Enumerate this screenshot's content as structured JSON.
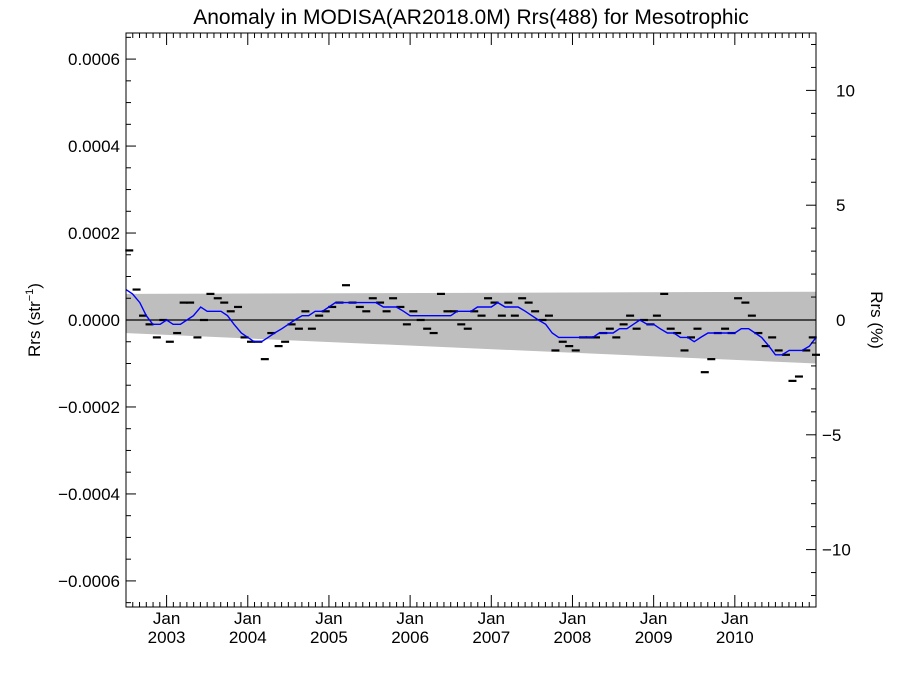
{
  "chart_data": {
    "type": "scatter",
    "title": "Anomaly in MODISA(AR2018.0M) Rrs(488) for Mesotrophic",
    "ylabel_left": "Rrs (str",
    "ylabel_left_sup": "−1",
    "ylabel_left_end": ")",
    "ylabel_right": "Rrs (%)",
    "x_range": [
      2002.5,
      2011.0
    ],
    "ylim_left": [
      -0.00066,
      0.00066
    ],
    "ylim_right": [
      -12.5,
      12.5
    ],
    "left_ticks": [
      {
        "value": 0.0006,
        "label": "0.0006"
      },
      {
        "value": 0.0004,
        "label": "0.0004"
      },
      {
        "value": 0.0002,
        "label": "0.0002"
      },
      {
        "value": 0.0,
        "label": "0.0000"
      },
      {
        "value": -0.0002,
        "label": "−0.0002"
      },
      {
        "value": -0.0004,
        "label": "−0.0004"
      },
      {
        "value": -0.0006,
        "label": "−0.0006"
      }
    ],
    "right_ticks": [
      {
        "value": 10,
        "label": "10"
      },
      {
        "value": 5,
        "label": "5"
      },
      {
        "value": 0,
        "label": "0"
      },
      {
        "value": -5,
        "label": "−5"
      },
      {
        "value": -10,
        "label": "−10"
      }
    ],
    "x_ticks": [
      {
        "value": 2003.0,
        "month": "Jan",
        "year": "2003"
      },
      {
        "value": 2004.0,
        "month": "Jan",
        "year": "2004"
      },
      {
        "value": 2005.0,
        "month": "Jan",
        "year": "2005"
      },
      {
        "value": 2006.0,
        "month": "Jan",
        "year": "2006"
      },
      {
        "value": 2007.0,
        "month": "Jan",
        "year": "2007"
      },
      {
        "value": 2008.0,
        "month": "Jan",
        "year": "2008"
      },
      {
        "value": 2009.0,
        "month": "Jan",
        "year": "2009"
      },
      {
        "value": 2010.0,
        "month": "Jan",
        "year": "2010"
      }
    ],
    "band": {
      "upper": [
        [
          2002.5,
          6e-05
        ],
        [
          2011.0,
          6.5e-05
        ]
      ],
      "lower": [
        [
          2002.5,
          -3e-05
        ],
        [
          2011.0,
          -0.0001
        ]
      ]
    },
    "zero_line": 0,
    "points": [
      [
        2002.54,
        0.00016
      ],
      [
        2002.63,
        7e-05
      ],
      [
        2002.71,
        1e-05
      ],
      [
        2002.79,
        -1e-05
      ],
      [
        2002.88,
        -4e-05
      ],
      [
        2002.96,
        0.0
      ],
      [
        2003.04,
        -5e-05
      ],
      [
        2003.13,
        -3e-05
      ],
      [
        2003.21,
        4e-05
      ],
      [
        2003.29,
        4e-05
      ],
      [
        2003.38,
        -4e-05
      ],
      [
        2003.46,
        0.0
      ],
      [
        2003.54,
        6e-05
      ],
      [
        2003.63,
        5e-05
      ],
      [
        2003.71,
        4e-05
      ],
      [
        2003.79,
        2e-05
      ],
      [
        2003.88,
        3e-05
      ],
      [
        2003.96,
        -4e-05
      ],
      [
        2004.04,
        -5e-05
      ],
      [
        2004.13,
        -5e-05
      ],
      [
        2004.21,
        -9e-05
      ],
      [
        2004.29,
        -3e-05
      ],
      [
        2004.38,
        -6e-05
      ],
      [
        2004.46,
        -5e-05
      ],
      [
        2004.54,
        -1e-05
      ],
      [
        2004.63,
        -2e-05
      ],
      [
        2004.71,
        2e-05
      ],
      [
        2004.79,
        -2e-05
      ],
      [
        2004.88,
        1e-05
      ],
      [
        2004.96,
        2e-05
      ],
      [
        2005.04,
        3e-05
      ],
      [
        2005.13,
        4e-05
      ],
      [
        2005.21,
        8e-05
      ],
      [
        2005.29,
        4e-05
      ],
      [
        2005.38,
        3e-05
      ],
      [
        2005.46,
        2e-05
      ],
      [
        2005.54,
        5e-05
      ],
      [
        2005.63,
        4e-05
      ],
      [
        2005.71,
        2e-05
      ],
      [
        2005.79,
        5e-05
      ],
      [
        2005.88,
        3e-05
      ],
      [
        2005.96,
        -1e-05
      ],
      [
        2006.04,
        2e-05
      ],
      [
        2006.13,
        0.0
      ],
      [
        2006.21,
        -2e-05
      ],
      [
        2006.29,
        -3e-05
      ],
      [
        2006.38,
        6e-05
      ],
      [
        2006.46,
        2e-05
      ],
      [
        2006.54,
        2e-05
      ],
      [
        2006.63,
        -1e-05
      ],
      [
        2006.71,
        -2e-05
      ],
      [
        2006.79,
        2e-05
      ],
      [
        2006.88,
        1e-05
      ],
      [
        2006.96,
        5e-05
      ],
      [
        2007.04,
        4e-05
      ],
      [
        2007.13,
        1e-05
      ],
      [
        2007.21,
        4e-05
      ],
      [
        2007.29,
        1e-05
      ],
      [
        2007.38,
        5e-05
      ],
      [
        2007.46,
        4e-05
      ],
      [
        2007.54,
        2e-05
      ],
      [
        2007.63,
        0.0
      ],
      [
        2007.71,
        1e-05
      ],
      [
        2007.79,
        -7e-05
      ],
      [
        2007.88,
        -5e-05
      ],
      [
        2007.96,
        -6e-05
      ],
      [
        2008.04,
        -7e-05
      ],
      [
        2008.13,
        -4e-05
      ],
      [
        2008.21,
        -4e-05
      ],
      [
        2008.29,
        -4e-05
      ],
      [
        2008.38,
        -3e-05
      ],
      [
        2008.46,
        -2e-05
      ],
      [
        2008.54,
        -4e-05
      ],
      [
        2008.63,
        -1e-05
      ],
      [
        2008.71,
        1e-05
      ],
      [
        2008.79,
        -2e-05
      ],
      [
        2008.88,
        0.0
      ],
      [
        2008.96,
        -1e-05
      ],
      [
        2009.04,
        1e-05
      ],
      [
        2009.13,
        6e-05
      ],
      [
        2009.21,
        -2e-05
      ],
      [
        2009.29,
        -3e-05
      ],
      [
        2009.38,
        -7e-05
      ],
      [
        2009.46,
        -4e-05
      ],
      [
        2009.54,
        -2e-05
      ],
      [
        2009.63,
        -0.00012
      ],
      [
        2009.71,
        -9e-05
      ],
      [
        2009.79,
        -3e-05
      ],
      [
        2009.88,
        -2e-05
      ],
      [
        2009.96,
        -3e-05
      ],
      [
        2010.04,
        5e-05
      ],
      [
        2010.13,
        4e-05
      ],
      [
        2010.21,
        1e-05
      ],
      [
        2010.29,
        -3e-05
      ],
      [
        2010.38,
        -6e-05
      ],
      [
        2010.46,
        -4e-05
      ],
      [
        2010.54,
        -7e-05
      ],
      [
        2010.63,
        -8e-05
      ],
      [
        2010.71,
        -0.00014
      ],
      [
        2010.79,
        -0.00013
      ],
      [
        2010.88,
        -7e-05
      ],
      [
        2010.96,
        -4e-05
      ],
      [
        2011.0,
        -8e-05
      ]
    ],
    "trend": [
      [
        2002.5,
        7e-05
      ],
      [
        2002.58,
        6e-05
      ],
      [
        2002.67,
        4e-05
      ],
      [
        2002.75,
        1e-05
      ],
      [
        2002.83,
        -1e-05
      ],
      [
        2002.92,
        -1e-05
      ],
      [
        2003.0,
        0.0
      ],
      [
        2003.08,
        -1e-05
      ],
      [
        2003.17,
        -1e-05
      ],
      [
        2003.25,
        0.0
      ],
      [
        2003.33,
        1e-05
      ],
      [
        2003.42,
        3e-05
      ],
      [
        2003.5,
        2e-05
      ],
      [
        2003.58,
        2e-05
      ],
      [
        2003.67,
        2e-05
      ],
      [
        2003.75,
        1e-05
      ],
      [
        2003.83,
        -1e-05
      ],
      [
        2003.92,
        -3e-05
      ],
      [
        2004.0,
        -4e-05
      ],
      [
        2004.08,
        -5e-05
      ],
      [
        2004.17,
        -5e-05
      ],
      [
        2004.25,
        -4e-05
      ],
      [
        2004.33,
        -3e-05
      ],
      [
        2004.42,
        -2e-05
      ],
      [
        2004.5,
        -1e-05
      ],
      [
        2004.58,
        0.0
      ],
      [
        2004.67,
        1e-05
      ],
      [
        2004.75,
        1e-05
      ],
      [
        2004.83,
        2e-05
      ],
      [
        2004.92,
        2e-05
      ],
      [
        2005.0,
        3e-05
      ],
      [
        2005.08,
        4e-05
      ],
      [
        2005.17,
        4e-05
      ],
      [
        2005.25,
        4e-05
      ],
      [
        2005.33,
        4e-05
      ],
      [
        2005.42,
        4e-05
      ],
      [
        2005.5,
        4e-05
      ],
      [
        2005.58,
        4e-05
      ],
      [
        2005.67,
        3e-05
      ],
      [
        2005.75,
        3e-05
      ],
      [
        2005.83,
        3e-05
      ],
      [
        2005.92,
        2e-05
      ],
      [
        2006.0,
        1e-05
      ],
      [
        2006.08,
        1e-05
      ],
      [
        2006.17,
        1e-05
      ],
      [
        2006.25,
        1e-05
      ],
      [
        2006.33,
        1e-05
      ],
      [
        2006.42,
        1e-05
      ],
      [
        2006.5,
        1e-05
      ],
      [
        2006.58,
        2e-05
      ],
      [
        2006.67,
        2e-05
      ],
      [
        2006.75,
        2e-05
      ],
      [
        2006.83,
        3e-05
      ],
      [
        2006.92,
        3e-05
      ],
      [
        2007.0,
        3e-05
      ],
      [
        2007.08,
        4e-05
      ],
      [
        2007.17,
        3e-05
      ],
      [
        2007.25,
        3e-05
      ],
      [
        2007.33,
        3e-05
      ],
      [
        2007.42,
        2e-05
      ],
      [
        2007.5,
        1e-05
      ],
      [
        2007.58,
        0.0
      ],
      [
        2007.67,
        -1e-05
      ],
      [
        2007.75,
        -3e-05
      ],
      [
        2007.83,
        -4e-05
      ],
      [
        2007.92,
        -4e-05
      ],
      [
        2008.0,
        -4e-05
      ],
      [
        2008.08,
        -4e-05
      ],
      [
        2008.17,
        -4e-05
      ],
      [
        2008.25,
        -4e-05
      ],
      [
        2008.33,
        -3e-05
      ],
      [
        2008.42,
        -3e-05
      ],
      [
        2008.5,
        -3e-05
      ],
      [
        2008.58,
        -2e-05
      ],
      [
        2008.67,
        -2e-05
      ],
      [
        2008.75,
        -1e-05
      ],
      [
        2008.83,
        0.0
      ],
      [
        2008.92,
        -1e-05
      ],
      [
        2009.0,
        -1e-05
      ],
      [
        2009.08,
        -2e-05
      ],
      [
        2009.17,
        -3e-05
      ],
      [
        2009.25,
        -3e-05
      ],
      [
        2009.33,
        -4e-05
      ],
      [
        2009.42,
        -4e-05
      ],
      [
        2009.5,
        -5e-05
      ],
      [
        2009.58,
        -4e-05
      ],
      [
        2009.67,
        -3e-05
      ],
      [
        2009.75,
        -3e-05
      ],
      [
        2009.83,
        -3e-05
      ],
      [
        2009.92,
        -3e-05
      ],
      [
        2010.0,
        -3e-05
      ],
      [
        2010.08,
        -2e-05
      ],
      [
        2010.17,
        -2e-05
      ],
      [
        2010.25,
        -3e-05
      ],
      [
        2010.33,
        -4e-05
      ],
      [
        2010.42,
        -6e-05
      ],
      [
        2010.5,
        -8e-05
      ],
      [
        2010.58,
        -8e-05
      ],
      [
        2010.67,
        -7e-05
      ],
      [
        2010.75,
        -7e-05
      ],
      [
        2010.83,
        -7e-05
      ],
      [
        2010.92,
        -6e-05
      ],
      [
        2011.0,
        -4e-05
      ]
    ],
    "grid": false,
    "colors": {
      "band": "#bebebe",
      "trend": "#0000ff",
      "points": "#000000",
      "axes": "#000000"
    }
  }
}
